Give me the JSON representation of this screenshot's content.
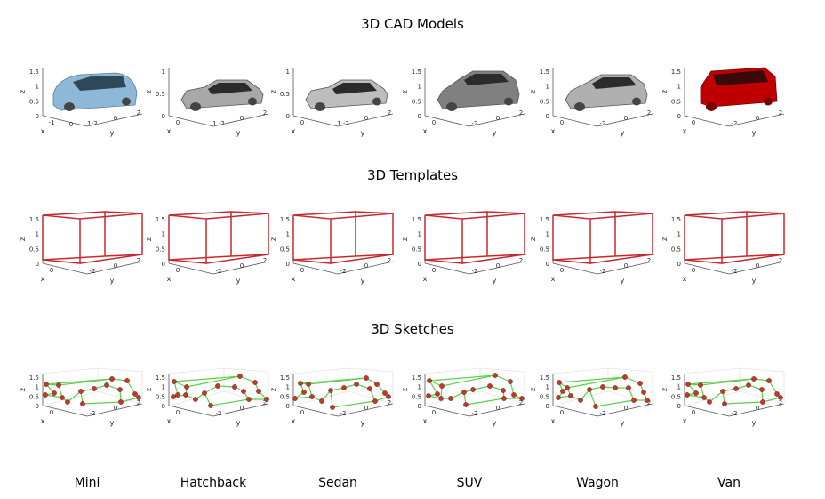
{
  "rows": {
    "cad": {
      "title": "3D CAD Models"
    },
    "templates": {
      "title": "3D Templates"
    },
    "sketches": {
      "title": "3D Sketches"
    }
  },
  "axis_text": {
    "x": "x",
    "y": "y",
    "z": "z"
  },
  "categories": [
    {
      "label": "Mini",
      "color": "#8eb8d8",
      "cad_ticks": {
        "z": [
          "1.5",
          "1",
          "0.5",
          "0"
        ],
        "x": [
          "-1",
          "0"
        ],
        "y": [
          "1-2",
          "0",
          "2"
        ]
      },
      "tpl_ticks": {
        "z": [
          "1.5",
          "1",
          "0.5",
          "0"
        ],
        "x": [
          "0"
        ],
        "y": [
          "-2",
          "0",
          "2"
        ]
      },
      "sk_ticks": {
        "z": [
          "1.5",
          "1",
          "0.5",
          "0"
        ],
        "x": [
          "0"
        ],
        "y": [
          "-2",
          "0",
          "2"
        ]
      }
    },
    {
      "label": "Hatchback",
      "color": "#a8a8a8",
      "cad_ticks": {
        "z": [
          "1",
          "0.5",
          "0"
        ],
        "x": [
          "0"
        ],
        "y": [
          "1 -2",
          "0",
          "2"
        ]
      },
      "tpl_ticks": {
        "z": [
          "1.5",
          "1",
          "0.5",
          "0"
        ],
        "x": [
          "0"
        ],
        "y": [
          "-2",
          "0",
          "2"
        ]
      },
      "sk_ticks": {
        "z": [
          "1.5",
          "1",
          "0.5",
          "0"
        ],
        "x": [
          "0"
        ],
        "y": [
          "-2",
          "0",
          "2"
        ]
      }
    },
    {
      "label": "Sedan",
      "color": "#bdbdbd",
      "cad_ticks": {
        "z": [
          "1",
          "0.5",
          "0"
        ],
        "x": [
          "0"
        ],
        "y": [
          "1 -2",
          "0",
          "2"
        ]
      },
      "tpl_ticks": {
        "z": [
          "1.5",
          "1",
          "0.5",
          "0"
        ],
        "x": [
          "0"
        ],
        "y": [
          "-2",
          "0",
          "2"
        ]
      },
      "sk_ticks": {
        "z": [
          "1.5",
          "1",
          "0.5",
          "0"
        ],
        "x": [
          "0"
        ],
        "y": [
          "-2",
          "0",
          "2"
        ]
      }
    },
    {
      "label": "SUV",
      "color": "#808080",
      "cad_ticks": {
        "z": [
          "1.5",
          "1",
          "0.5",
          "0"
        ],
        "x": [
          "0"
        ],
        "y": [
          "-2",
          "0",
          "2"
        ]
      },
      "tpl_ticks": {
        "z": [
          "1.5",
          "1",
          "0.5",
          "0"
        ],
        "x": [
          "0"
        ],
        "y": [
          "-2",
          "0",
          "2"
        ]
      },
      "sk_ticks": {
        "z": [
          "1.5",
          "1",
          "0.5",
          "0"
        ],
        "x": [
          "0"
        ],
        "y": [
          "-2",
          "0",
          "2"
        ]
      }
    },
    {
      "label": "Wagon",
      "color": "#b0b0b0",
      "cad_ticks": {
        "z": [
          "1.5",
          "1",
          "0.5",
          "0"
        ],
        "x": [
          "0"
        ],
        "y": [
          "-2",
          "0",
          "2"
        ]
      },
      "tpl_ticks": {
        "z": [
          "1.5",
          "1",
          "0.5",
          "0"
        ],
        "x": [
          "0"
        ],
        "y": [
          "-2",
          "0",
          "2"
        ]
      },
      "sk_ticks": {
        "z": [
          "1.5",
          "1",
          "0.5",
          "0"
        ],
        "x": [
          "0"
        ],
        "y": [
          "-2",
          "0",
          "2"
        ]
      }
    },
    {
      "label": "Van",
      "color": "#c00000",
      "cad_ticks": {
        "z": [
          "1.5",
          "1",
          "0.5",
          "0"
        ],
        "x": [
          "0"
        ],
        "y": [
          "-2",
          "0",
          "2"
        ]
      },
      "tpl_ticks": {
        "z": [
          "1.5",
          "1",
          "0.5",
          "0"
        ],
        "x": [
          "0"
        ],
        "y": [
          "-2",
          "0",
          "2"
        ]
      },
      "sk_ticks": {
        "z": [
          "1.5",
          "1",
          "0.5",
          "0"
        ],
        "x": [
          "0"
        ],
        "y": [
          "-2",
          "0",
          "2"
        ]
      }
    }
  ],
  "colors": {
    "template_box": "#c8282d",
    "sketch_point": "#c0392b",
    "sketch_line": "#5ccf4a",
    "axis": "#555555"
  }
}
